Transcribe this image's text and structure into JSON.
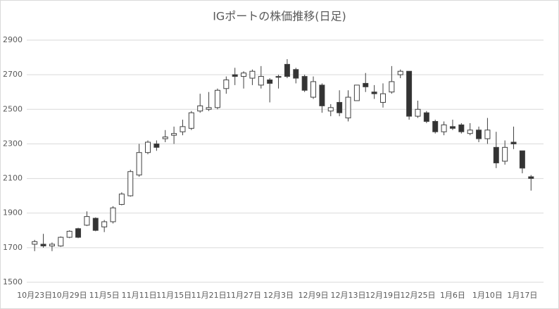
{
  "chart_data": {
    "type": "candlestick",
    "title": "IGポートの株価推移(日足)",
    "categories": [
      "10月23日",
      null,
      null,
      null,
      "10月29日",
      null,
      null,
      null,
      "11月5日",
      null,
      null,
      null,
      "11月11日",
      null,
      null,
      null,
      "11月15日",
      null,
      null,
      null,
      "11月21日",
      null,
      null,
      null,
      "11月27日",
      null,
      null,
      null,
      "12月3日",
      null,
      null,
      null,
      "12月9日",
      null,
      null,
      null,
      "12月13日",
      null,
      null,
      null,
      "12月19日",
      null,
      null,
      null,
      "12月25日",
      null,
      null,
      null,
      "1月6日",
      null,
      null,
      null,
      "1月10日",
      null,
      null,
      null,
      "1月17日",
      null
    ],
    "open": [
      1720,
      1720,
      1710,
      1710,
      1760,
      1810,
      1830,
      1870,
      1820,
      1850,
      1950,
      2000,
      2120,
      2250,
      2300,
      2330,
      2350,
      2370,
      2390,
      2490,
      2500,
      2510,
      2620,
      2700,
      2690,
      2680,
      2640,
      2670,
      2690,
      2760,
      2730,
      2690,
      2570,
      2640,
      2490,
      2540,
      2450,
      2550,
      2650,
      2600,
      2540,
      2600,
      2700,
      2720,
      2460,
      2480,
      2430,
      2370,
      2400,
      2410,
      2360,
      2380,
      2330,
      2280,
      2200,
      2310,
      2260,
      2110
    ],
    "high": [
      1745,
      1780,
      1730,
      1765,
      1800,
      1815,
      1910,
      1875,
      1860,
      1940,
      2020,
      2150,
      2300,
      2320,
      2320,
      2380,
      2400,
      2440,
      2490,
      2590,
      2600,
      2620,
      2690,
      2740,
      2720,
      2730,
      2750,
      2680,
      2700,
      2790,
      2740,
      2700,
      2690,
      2650,
      2530,
      2610,
      2610,
      2640,
      2710,
      2640,
      2650,
      2750,
      2730,
      2720,
      2550,
      2490,
      2440,
      2430,
      2440,
      2420,
      2420,
      2400,
      2450,
      2370,
      2320,
      2400,
      2260,
      2120
    ],
    "low": [
      1680,
      1700,
      1680,
      1705,
      1755,
      1755,
      1825,
      1795,
      1790,
      1840,
      1945,
      1995,
      2110,
      2240,
      2260,
      2310,
      2300,
      2350,
      2380,
      2480,
      2490,
      2500,
      2590,
      2640,
      2620,
      2640,
      2620,
      2540,
      2620,
      2680,
      2650,
      2600,
      2560,
      2480,
      2460,
      2460,
      2430,
      2550,
      2600,
      2560,
      2510,
      2590,
      2680,
      2440,
      2450,
      2420,
      2360,
      2350,
      2380,
      2360,
      2350,
      2310,
      2300,
      2160,
      2180,
      2270,
      2130,
      2030
    ],
    "close": [
      1735,
      1710,
      1720,
      1760,
      1795,
      1760,
      1880,
      1800,
      1850,
      1930,
      2010,
      2140,
      2250,
      2310,
      2280,
      2340,
      2360,
      2400,
      2480,
      2520,
      2510,
      2610,
      2670,
      2690,
      2710,
      2720,
      2690,
      2650,
      2685,
      2690,
      2680,
      2610,
      2660,
      2520,
      2510,
      2480,
      2570,
      2640,
      2630,
      2590,
      2590,
      2660,
      2720,
      2460,
      2500,
      2430,
      2370,
      2410,
      2390,
      2370,
      2380,
      2330,
      2380,
      2190,
      2280,
      2300,
      2160,
      2100
    ],
    "up_color": "#ffffff",
    "down_color": "#333333",
    "ylim": [
      1500,
      2900
    ],
    "yticks": [
      1500,
      1700,
      1900,
      2100,
      2300,
      2500,
      2700,
      2900
    ],
    "grid": true
  }
}
